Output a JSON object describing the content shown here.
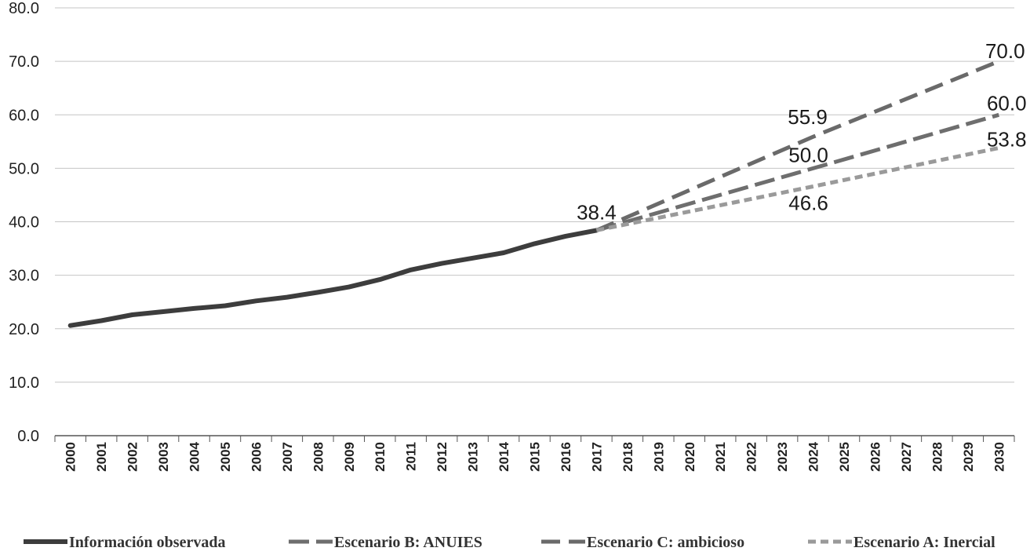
{
  "chart_data": {
    "type": "line",
    "title": "",
    "xlabel": "",
    "ylabel": "",
    "ylim": [
      0,
      80
    ],
    "yticks": [
      "0.0",
      "10.0",
      "20.0",
      "30.0",
      "40.0",
      "50.0",
      "60.0",
      "70.0",
      "80.0"
    ],
    "x": [
      "2000",
      "2001",
      "2002",
      "2003",
      "2004",
      "2005",
      "2006",
      "2007",
      "2008",
      "2009",
      "2010",
      "2011",
      "2012",
      "2013",
      "2014",
      "2015",
      "2016",
      "2017",
      "2018",
      "2019",
      "2020",
      "2021",
      "2022",
      "2023",
      "2024",
      "2025",
      "2026",
      "2027",
      "2028",
      "2029",
      "2030"
    ],
    "grid": true,
    "legend_position": "bottom",
    "series": [
      {
        "name": "Información observada",
        "style": "solid",
        "color": "#3d3d3d",
        "points": [
          [
            "2000",
            20.6
          ],
          [
            "2001",
            21.5
          ],
          [
            "2002",
            22.6
          ],
          [
            "2003",
            23.2
          ],
          [
            "2004",
            23.8
          ],
          [
            "2005",
            24.3
          ],
          [
            "2006",
            25.2
          ],
          [
            "2007",
            25.9
          ],
          [
            "2008",
            26.8
          ],
          [
            "2009",
            27.8
          ],
          [
            "2010",
            29.2
          ],
          [
            "2011",
            31.0
          ],
          [
            "2012",
            32.2
          ],
          [
            "2013",
            33.2
          ],
          [
            "2014",
            34.2
          ],
          [
            "2015",
            35.9
          ],
          [
            "2016",
            37.3
          ],
          [
            "2017",
            38.4
          ]
        ]
      },
      {
        "name": "Escenario B: ANUIES",
        "style": "dash",
        "color": "#6e6e6e",
        "points": [
          [
            "2017",
            38.4
          ],
          [
            "2024",
            50.0
          ],
          [
            "2030",
            60.0
          ]
        ]
      },
      {
        "name": "Escenario C: ambicioso",
        "style": "longdash",
        "color": "#6a6a6a",
        "points": [
          [
            "2017",
            38.4
          ],
          [
            "2024",
            55.9
          ],
          [
            "2030",
            70.0
          ]
        ]
      },
      {
        "name": "Escenario A: Inercial",
        "style": "dot",
        "color": "#9a9a9a",
        "points": [
          [
            "2017",
            38.4
          ],
          [
            "2024",
            46.6
          ],
          [
            "2030",
            53.8
          ]
        ]
      }
    ],
    "annotations": [
      {
        "text": "38.4",
        "x": "2017",
        "y": 38.4,
        "pos": "above"
      },
      {
        "text": "55.9",
        "x": "2024",
        "y": 55.9,
        "pos": "above"
      },
      {
        "text": "50.0",
        "x": "2024",
        "y": 50.0,
        "pos": "above"
      },
      {
        "text": "46.6",
        "x": "2024",
        "y": 46.6,
        "pos": "below"
      },
      {
        "text": "70.0",
        "x": "2030",
        "y": 70.0,
        "pos": "above"
      },
      {
        "text": "60.0",
        "x": "2030",
        "y": 60.0,
        "pos": "above"
      },
      {
        "text": "53.8",
        "x": "2030",
        "y": 53.8,
        "pos": "above"
      }
    ]
  }
}
